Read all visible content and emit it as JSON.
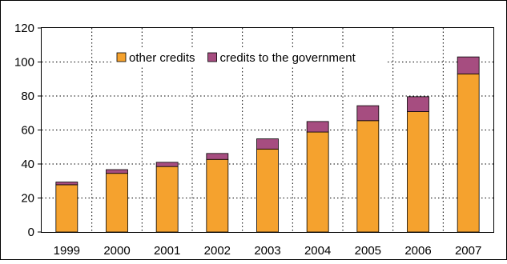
{
  "chart_data": {
    "type": "bar",
    "stacked": true,
    "categories": [
      "1999",
      "2000",
      "2001",
      "2002",
      "2003",
      "2004",
      "2005",
      "2006",
      "2007"
    ],
    "series": [
      {
        "name": "other credits",
        "color": "#f5a22e",
        "values": [
          27.8,
          34.5,
          38.5,
          42.7,
          48.8,
          58.8,
          65.5,
          70.8,
          93.0
        ]
      },
      {
        "name": "credits to the government",
        "color": "#a64d80",
        "values": [
          1.6,
          2.2,
          2.5,
          3.5,
          6.0,
          6.2,
          8.8,
          8.8,
          10.0
        ]
      }
    ],
    "ylim": [
      0,
      120
    ],
    "yticks": [
      0,
      20,
      40,
      60,
      80,
      100,
      120
    ],
    "grid": true,
    "legend_position": "top"
  }
}
